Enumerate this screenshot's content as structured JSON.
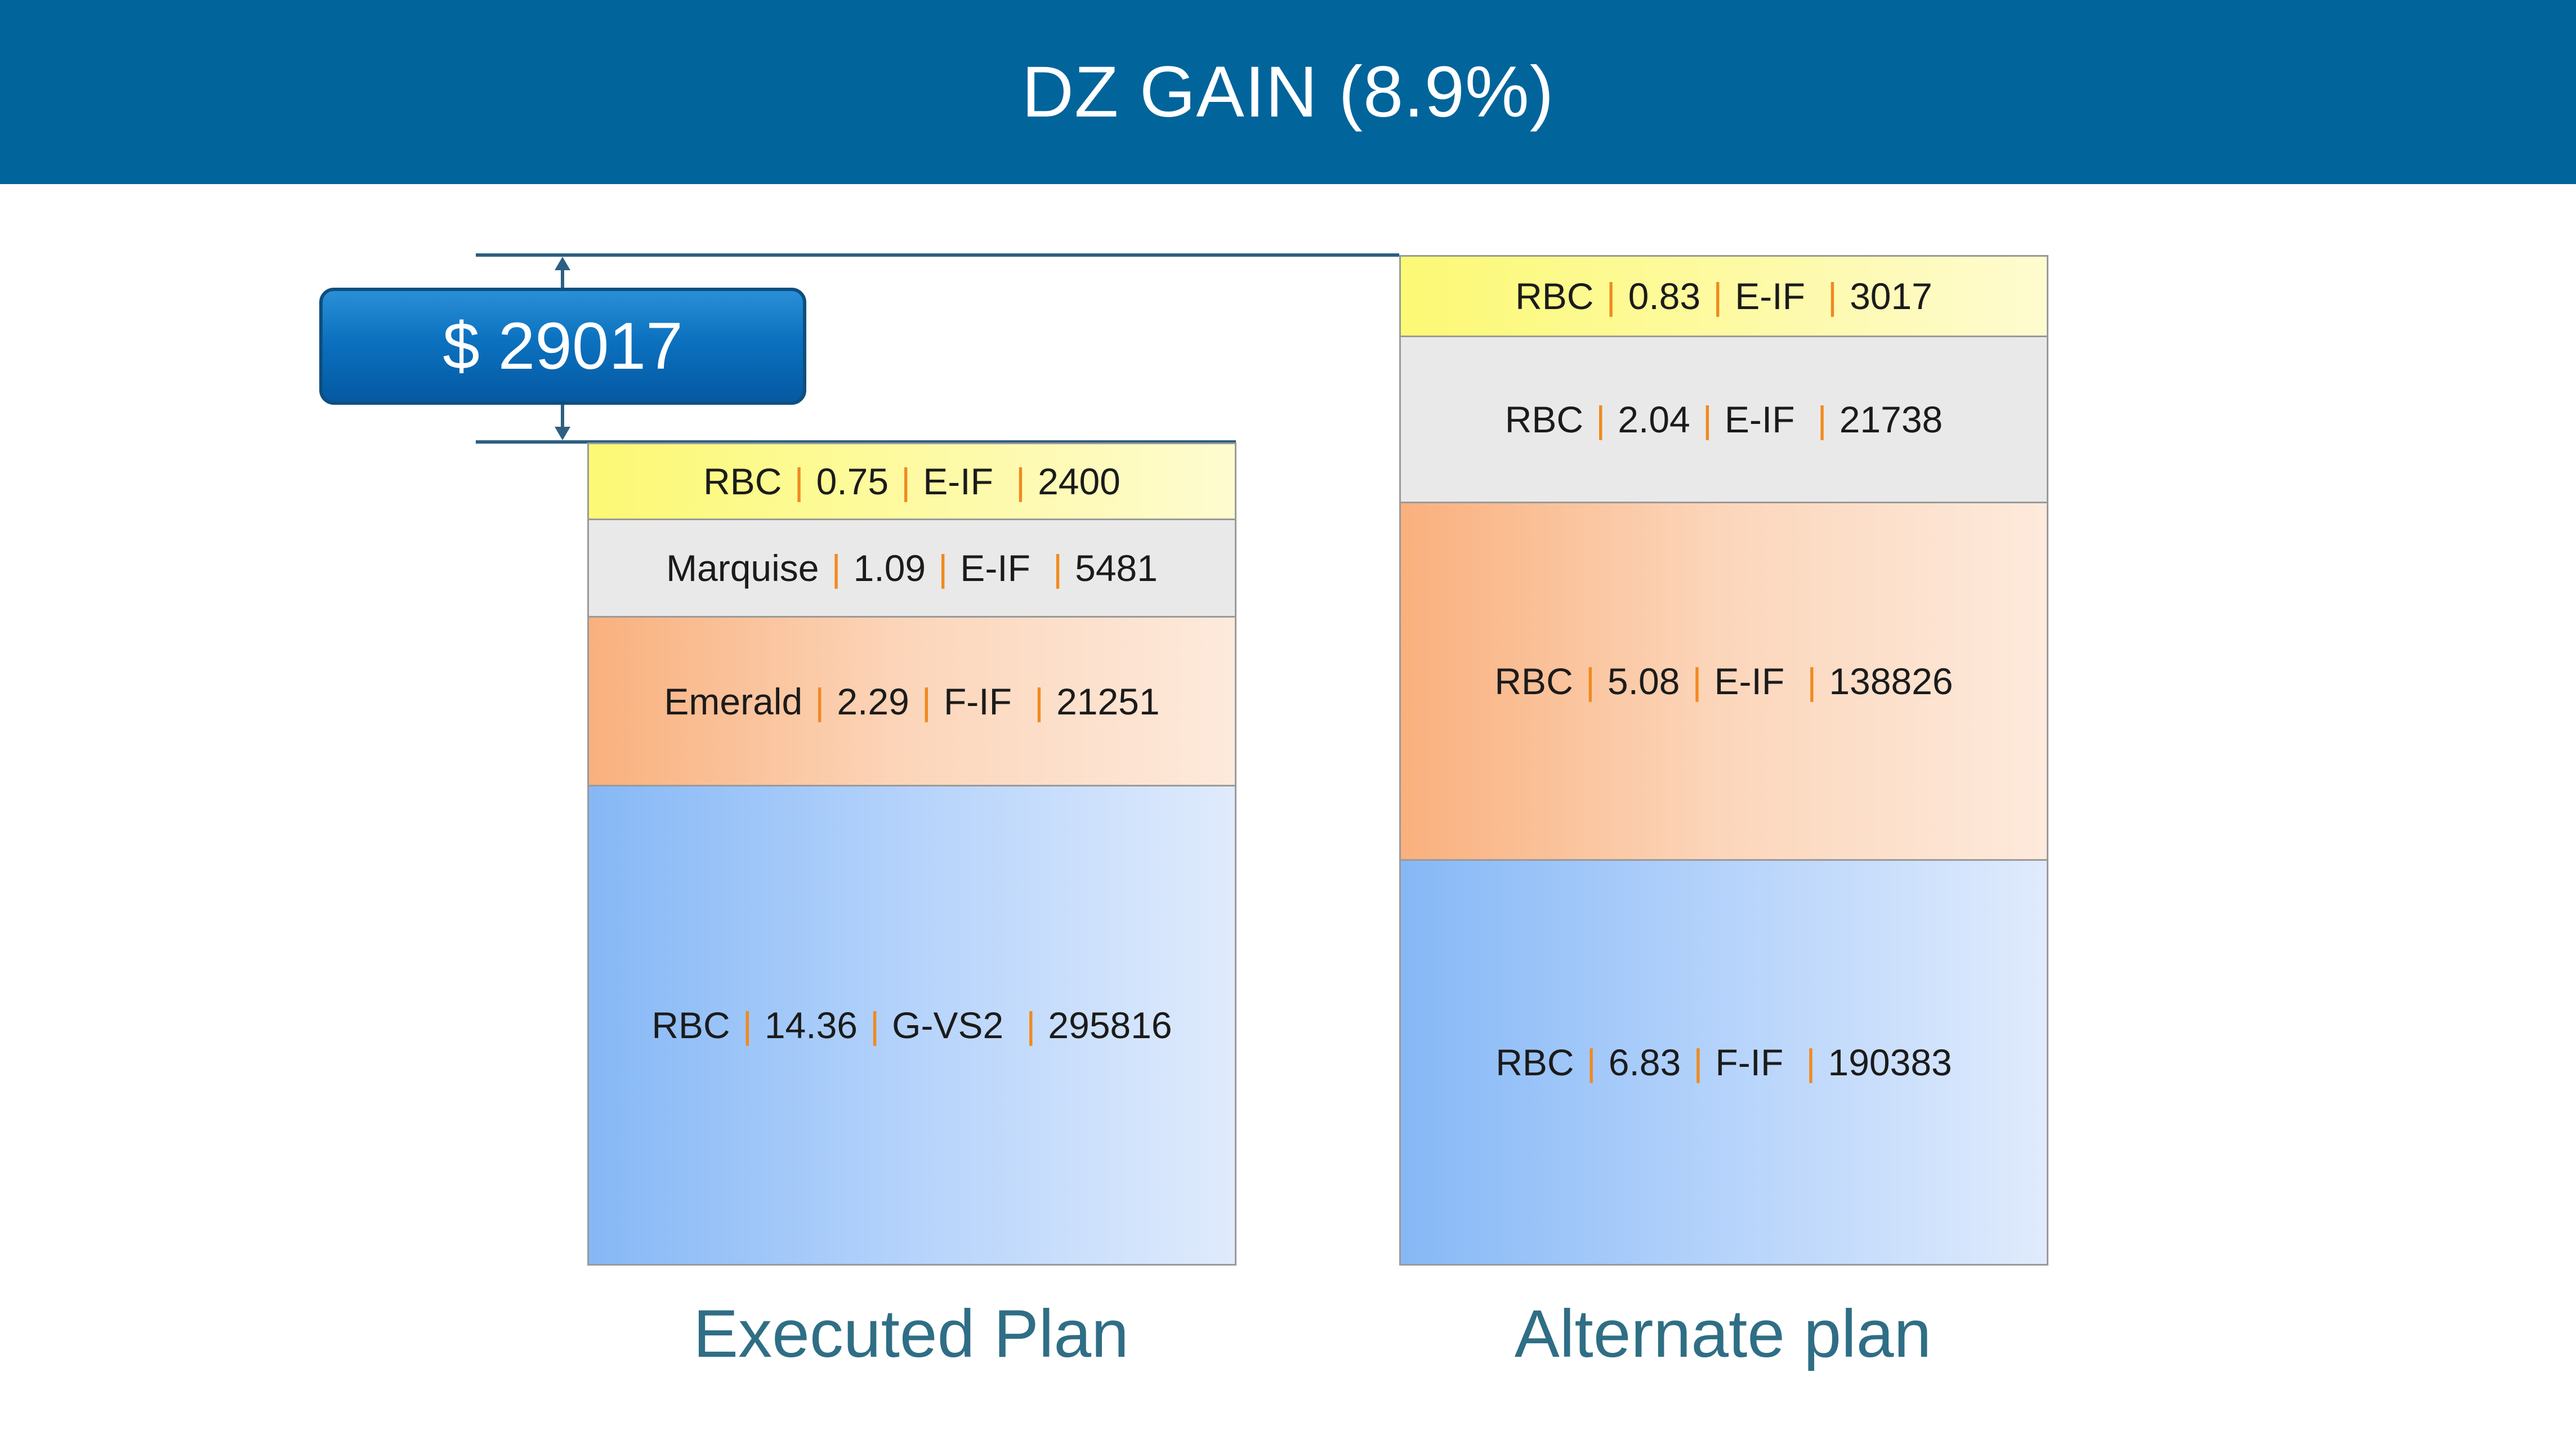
{
  "header": {
    "title": "DZ GAIN (8.9%)"
  },
  "gain_badge": {
    "label": "$ 29017"
  },
  "plans": [
    {
      "label": "Executed Plan",
      "segments": [
        {
          "name": "RBC",
          "value": "0.75",
          "grade": "E-IF",
          "amount": "2400",
          "color": "yellow"
        },
        {
          "name": "Marquise",
          "value": "1.09",
          "grade": "E-IF",
          "amount": "5481",
          "color": "gray"
        },
        {
          "name": "Emerald",
          "value": "2.29",
          "grade": "F-IF",
          "amount": "21251",
          "color": "orange"
        },
        {
          "name": "RBC",
          "value": "14.36",
          "grade": "G-VS2",
          "amount": "295816",
          "color": "blue"
        }
      ]
    },
    {
      "label": "Alternate plan",
      "segments": [
        {
          "name": "RBC",
          "value": "0.83",
          "grade": "E-IF",
          "amount": "3017",
          "color": "yellow"
        },
        {
          "name": "RBC",
          "value": "2.04",
          "grade": "E-IF",
          "amount": "21738",
          "color": "gray"
        },
        {
          "name": "RBC",
          "value": "5.08",
          "grade": "E-IF",
          "amount": "138826",
          "color": "orange"
        },
        {
          "name": "RBC",
          "value": "6.83",
          "grade": "F-IF",
          "amount": "190383",
          "color": "blue"
        }
      ]
    }
  ],
  "colors": {
    "header_bg": "#01649b",
    "separator": "#f08a1e",
    "label_text": "#2f6e85"
  }
}
